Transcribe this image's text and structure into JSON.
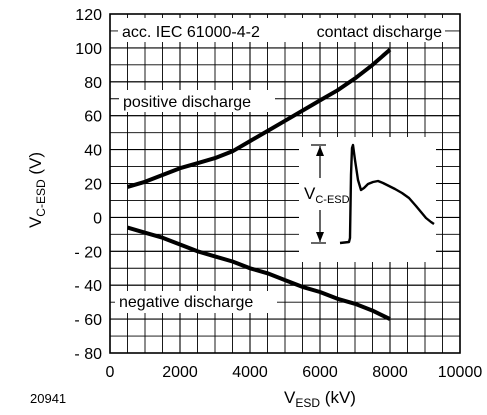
{
  "chart_data": {
    "type": "line",
    "figure_id": "20941",
    "xlabel": {
      "main": "V",
      "sub": "ESD",
      "unit": " (kV)"
    },
    "ylabel": {
      "main": "V",
      "sub": "C-ESD",
      "unit": " (V)"
    },
    "xlim": [
      0,
      10000
    ],
    "ylim": [
      -80,
      120
    ],
    "xticks": [
      0,
      2000,
      4000,
      6000,
      8000,
      10000
    ],
    "yticks": [
      -80,
      -60,
      -40,
      -20,
      0,
      20,
      40,
      60,
      80,
      100,
      120
    ],
    "ytick_labels": [
      "- 80",
      "- 60",
      "- 40",
      "- 20",
      "0",
      "20",
      "40",
      "60",
      "80",
      "100",
      "120"
    ],
    "x_minor_step": 500,
    "y_minor_step": 10,
    "grid": true,
    "annotations": {
      "standard": "acc. IEC 61000-4-2",
      "mode": "contact discharge",
      "positive": "positive discharge",
      "negative": "negative discharge",
      "inset_label_main": "V",
      "inset_label_sub": "C-ESD"
    },
    "series": [
      {
        "name": "positive discharge",
        "x": [
          500,
          1000,
          1500,
          2000,
          2500,
          3000,
          3500,
          4000,
          4500,
          5000,
          5500,
          6000,
          6500,
          7000,
          7500,
          8000
        ],
        "y": [
          18,
          21,
          25,
          29,
          32,
          35,
          39,
          45,
          51,
          57,
          63,
          69,
          75,
          82,
          90,
          99
        ]
      },
      {
        "name": "negative discharge",
        "x": [
          500,
          1000,
          1500,
          2000,
          2500,
          3000,
          3500,
          4000,
          4500,
          5000,
          5500,
          6000,
          6500,
          7000,
          7500,
          8000
        ],
        "y": [
          -6,
          -9,
          -12,
          -16,
          -20,
          -23,
          -26,
          -30,
          -33,
          -37,
          -41,
          -44,
          -48,
          -51,
          -55,
          -60
        ]
      }
    ]
  }
}
